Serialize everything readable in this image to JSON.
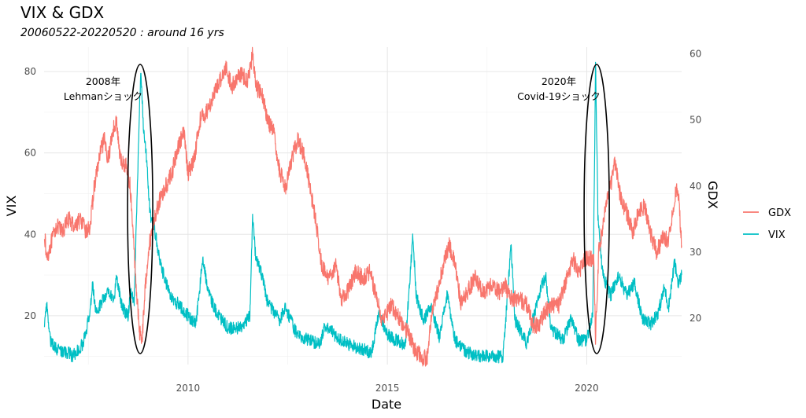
{
  "chart_data": {
    "type": "line",
    "title": "VIX & GDX",
    "subtitle": "20060522-20220520 : around 16 yrs",
    "xlabel": "Date",
    "ylabel": "VIX",
    "y2label": "GDX",
    "x_range": [
      2006.39,
      2022.38
    ],
    "ylim": [
      8,
      86
    ],
    "y2lim": [
      13,
      61
    ],
    "x_ticks": [
      2010,
      2015,
      2020
    ],
    "y_ticks": [
      20,
      40,
      60,
      80
    ],
    "y2_ticks": [
      20,
      30,
      40,
      50,
      60
    ],
    "grid": true,
    "legend_position": "right",
    "legend": [
      {
        "name": "GDX",
        "color": "#F8766D"
      },
      {
        "name": "VIX",
        "color": "#00BFC4"
      }
    ],
    "annotations": [
      {
        "line1": "2008年",
        "line2": "Lehmanショック",
        "x": 2008.8
      },
      {
        "line1": "2020年",
        "line2": "Covid-19ショック",
        "x": 2020.25
      }
    ],
    "series": [
      {
        "name": "VIX",
        "axis": "left",
        "color": "#00BFC4",
        "points": [
          [
            2006.4,
            17
          ],
          [
            2006.45,
            23
          ],
          [
            2006.55,
            14
          ],
          [
            2006.7,
            12
          ],
          [
            2006.85,
            11
          ],
          [
            2007.0,
            11
          ],
          [
            2007.1,
            10
          ],
          [
            2007.2,
            11
          ],
          [
            2007.35,
            13
          ],
          [
            2007.45,
            16
          ],
          [
            2007.55,
            22
          ],
          [
            2007.6,
            28
          ],
          [
            2007.7,
            20
          ],
          [
            2007.85,
            24
          ],
          [
            2008.0,
            26
          ],
          [
            2008.15,
            24
          ],
          [
            2008.2,
            30
          ],
          [
            2008.35,
            22
          ],
          [
            2008.5,
            20
          ],
          [
            2008.55,
            26
          ],
          [
            2008.65,
            24
          ],
          [
            2008.72,
            48
          ],
          [
            2008.78,
            70
          ],
          [
            2008.82,
            80
          ],
          [
            2008.88,
            66
          ],
          [
            2008.95,
            60
          ],
          [
            2009.05,
            45
          ],
          [
            2009.15,
            42
          ],
          [
            2009.3,
            33
          ],
          [
            2009.45,
            28
          ],
          [
            2009.6,
            24
          ],
          [
            2009.75,
            23
          ],
          [
            2010.0,
            20
          ],
          [
            2010.2,
            18
          ],
          [
            2010.37,
            34
          ],
          [
            2010.5,
            26
          ],
          [
            2010.7,
            21
          ],
          [
            2011.0,
            17
          ],
          [
            2011.3,
            17
          ],
          [
            2011.55,
            20
          ],
          [
            2011.62,
            44
          ],
          [
            2011.7,
            34
          ],
          [
            2011.85,
            30
          ],
          [
            2012.0,
            23
          ],
          [
            2012.3,
            19
          ],
          [
            2012.45,
            22
          ],
          [
            2012.7,
            16
          ],
          [
            2013.0,
            14
          ],
          [
            2013.3,
            13
          ],
          [
            2013.45,
            18
          ],
          [
            2013.7,
            15
          ],
          [
            2014.0,
            13
          ],
          [
            2014.3,
            12
          ],
          [
            2014.6,
            11
          ],
          [
            2014.8,
            21
          ],
          [
            2014.95,
            16
          ],
          [
            2015.2,
            14
          ],
          [
            2015.45,
            13
          ],
          [
            2015.64,
            40
          ],
          [
            2015.72,
            25
          ],
          [
            2015.9,
            19
          ],
          [
            2016.1,
            22
          ],
          [
            2016.3,
            15
          ],
          [
            2016.5,
            25
          ],
          [
            2016.7,
            14
          ],
          [
            2017.0,
            11
          ],
          [
            2017.3,
            10
          ],
          [
            2017.6,
            10
          ],
          [
            2017.9,
            10
          ],
          [
            2018.1,
            37
          ],
          [
            2018.2,
            19
          ],
          [
            2018.5,
            13
          ],
          [
            2018.8,
            25
          ],
          [
            2018.97,
            30
          ],
          [
            2019.1,
            17
          ],
          [
            2019.4,
            14
          ],
          [
            2019.6,
            19
          ],
          [
            2019.8,
            14
          ],
          [
            2020.0,
            14
          ],
          [
            2020.15,
            20
          ],
          [
            2020.2,
            60
          ],
          [
            2020.22,
            83
          ],
          [
            2020.28,
            45
          ],
          [
            2020.4,
            30
          ],
          [
            2020.6,
            25
          ],
          [
            2020.8,
            30
          ],
          [
            2021.0,
            25
          ],
          [
            2021.2,
            28
          ],
          [
            2021.4,
            19
          ],
          [
            2021.6,
            18
          ],
          [
            2021.8,
            21
          ],
          [
            2021.95,
            27
          ],
          [
            2022.05,
            22
          ],
          [
            2022.2,
            33
          ],
          [
            2022.3,
            28
          ],
          [
            2022.38,
            30
          ]
        ]
      },
      {
        "name": "GDX",
        "axis": "right",
        "color": "#F8766D",
        "points": [
          [
            2006.4,
            33
          ],
          [
            2006.45,
            29
          ],
          [
            2006.55,
            31
          ],
          [
            2006.7,
            34
          ],
          [
            2006.85,
            33
          ],
          [
            2007.0,
            35
          ],
          [
            2007.15,
            34
          ],
          [
            2007.3,
            35
          ],
          [
            2007.45,
            33
          ],
          [
            2007.55,
            34
          ],
          [
            2007.65,
            40
          ],
          [
            2007.8,
            45
          ],
          [
            2007.9,
            47
          ],
          [
            2008.0,
            44
          ],
          [
            2008.1,
            48
          ],
          [
            2008.2,
            50
          ],
          [
            2008.3,
            44
          ],
          [
            2008.45,
            43
          ],
          [
            2008.55,
            40
          ],
          [
            2008.62,
            33
          ],
          [
            2008.7,
            25
          ],
          [
            2008.78,
            18
          ],
          [
            2008.85,
            17
          ],
          [
            2008.92,
            24
          ],
          [
            2009.0,
            30
          ],
          [
            2009.15,
            35
          ],
          [
            2009.3,
            38
          ],
          [
            2009.45,
            40
          ],
          [
            2009.6,
            42
          ],
          [
            2009.75,
            46
          ],
          [
            2009.9,
            48
          ],
          [
            2010.0,
            42
          ],
          [
            2010.15,
            44
          ],
          [
            2010.3,
            50
          ],
          [
            2010.45,
            51
          ],
          [
            2010.6,
            53
          ],
          [
            2010.8,
            56
          ],
          [
            2010.95,
            58
          ],
          [
            2011.1,
            55
          ],
          [
            2011.3,
            57
          ],
          [
            2011.5,
            56
          ],
          [
            2011.62,
            60
          ],
          [
            2011.7,
            55
          ],
          [
            2011.85,
            54
          ],
          [
            2012.0,
            50
          ],
          [
            2012.15,
            48
          ],
          [
            2012.3,
            42
          ],
          [
            2012.45,
            40
          ],
          [
            2012.6,
            44
          ],
          [
            2012.75,
            47
          ],
          [
            2012.9,
            45
          ],
          [
            2013.05,
            40
          ],
          [
            2013.2,
            35
          ],
          [
            2013.35,
            28
          ],
          [
            2013.5,
            26
          ],
          [
            2013.7,
            28
          ],
          [
            2013.85,
            23
          ],
          [
            2014.0,
            24
          ],
          [
            2014.2,
            27
          ],
          [
            2014.4,
            26
          ],
          [
            2014.55,
            27
          ],
          [
            2014.7,
            24
          ],
          [
            2014.85,
            20
          ],
          [
            2015.0,
            21
          ],
          [
            2015.1,
            22
          ],
          [
            2015.3,
            20
          ],
          [
            2015.5,
            18
          ],
          [
            2015.7,
            15
          ],
          [
            2015.9,
            14
          ],
          [
            2016.0,
            14
          ],
          [
            2016.1,
            20
          ],
          [
            2016.25,
            24
          ],
          [
            2016.4,
            28
          ],
          [
            2016.55,
            31
          ],
          [
            2016.7,
            28
          ],
          [
            2016.85,
            22
          ],
          [
            2017.0,
            24
          ],
          [
            2017.2,
            26
          ],
          [
            2017.4,
            24
          ],
          [
            2017.6,
            25
          ],
          [
            2017.8,
            24
          ],
          [
            2017.95,
            25
          ],
          [
            2018.1,
            23
          ],
          [
            2018.3,
            23
          ],
          [
            2018.5,
            22
          ],
          [
            2018.65,
            19
          ],
          [
            2018.8,
            19
          ],
          [
            2018.95,
            21
          ],
          [
            2019.1,
            22
          ],
          [
            2019.3,
            22
          ],
          [
            2019.5,
            26
          ],
          [
            2019.65,
            29
          ],
          [
            2019.8,
            27
          ],
          [
            2019.95,
            29
          ],
          [
            2020.05,
            29
          ],
          [
            2020.18,
            29
          ],
          [
            2020.22,
            17
          ],
          [
            2020.3,
            30
          ],
          [
            2020.45,
            36
          ],
          [
            2020.6,
            40
          ],
          [
            2020.72,
            44
          ],
          [
            2020.85,
            38
          ],
          [
            2021.0,
            36
          ],
          [
            2021.15,
            33
          ],
          [
            2021.3,
            36
          ],
          [
            2021.45,
            37
          ],
          [
            2021.6,
            33
          ],
          [
            2021.75,
            30
          ],
          [
            2021.9,
            32
          ],
          [
            2022.05,
            32
          ],
          [
            2022.2,
            38
          ],
          [
            2022.28,
            40
          ],
          [
            2022.33,
            36
          ],
          [
            2022.38,
            31
          ]
        ]
      }
    ]
  }
}
